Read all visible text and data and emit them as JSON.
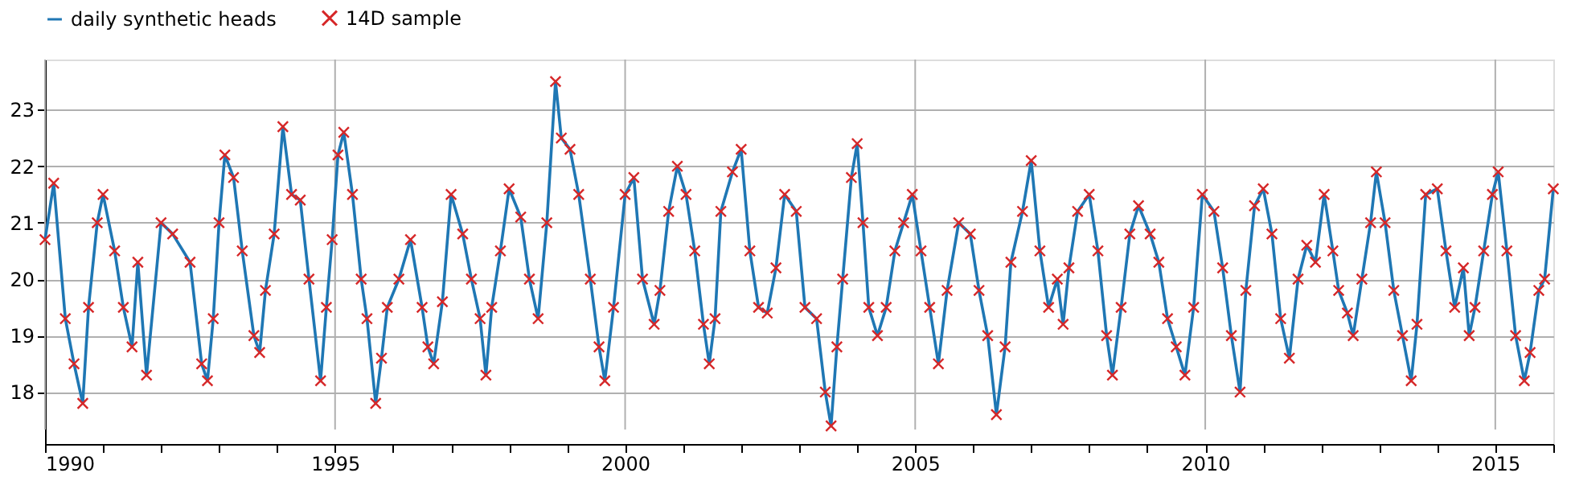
{
  "chart_data": {
    "type": "line",
    "xlim": [
      1990,
      2016
    ],
    "ylim": [
      17.08,
      23.89
    ],
    "xticks": [
      1990,
      {
        "value": 1991,
        "label": null
      },
      {
        "value": 1992,
        "label": null
      },
      {
        "value": 1993,
        "label": null
      },
      {
        "value": 1994,
        "label": null
      },
      1995,
      {
        "value": 1996,
        "label": null
      },
      {
        "value": 1997,
        "label": null
      },
      {
        "value": 1998,
        "label": null
      },
      {
        "value": 1999,
        "label": null
      },
      2000,
      {
        "value": 2001,
        "label": null
      },
      {
        "value": 2002,
        "label": null
      },
      {
        "value": 2003,
        "label": null
      },
      {
        "value": 2004,
        "label": null
      },
      2005,
      {
        "value": 2006,
        "label": null
      },
      {
        "value": 2007,
        "label": null
      },
      {
        "value": 2008,
        "label": null
      },
      {
        "value": 2009,
        "label": null
      },
      2010,
      {
        "value": 2011,
        "label": null
      },
      {
        "value": 2012,
        "label": null
      },
      {
        "value": 2013,
        "label": null
      },
      {
        "value": 2014,
        "label": null
      },
      2015,
      {
        "value": 2016,
        "label": null
      }
    ],
    "yticks": [
      18,
      19,
      20,
      21,
      22,
      23
    ],
    "grid": true,
    "legend": "top left",
    "series": [
      {
        "name": "daily synthetic heads",
        "type": "line",
        "marker": "none",
        "line_style": "solid",
        "color": "#1f77b4",
        "x": [
          1990.0,
          1990.15,
          1990.35,
          1990.5,
          1990.65,
          1990.75,
          1990.9,
          1991.0,
          1991.2,
          1991.35,
          1991.5,
          1991.6,
          1991.75,
          1992.0,
          1992.2,
          1992.5,
          1992.7,
          1992.8,
          1992.9,
          1993.0,
          1993.1,
          1993.25,
          1993.4,
          1993.6,
          1993.7,
          1993.8,
          1993.95,
          1994.1,
          1994.25,
          1994.4,
          1994.55,
          1994.75,
          1994.85,
          1994.95,
          1995.05,
          1995.15,
          1995.3,
          1995.45,
          1995.55,
          1995.7,
          1995.8,
          1995.9,
          1996.1,
          1996.3,
          1996.5,
          1996.6,
          1996.7,
          1996.85,
          1997.0,
          1997.2,
          1997.35,
          1997.5,
          1997.6,
          1997.7,
          1997.85,
          1998.0,
          1998.2,
          1998.35,
          1998.5,
          1998.65,
          1998.8,
          1998.9,
          1999.05,
          1999.2,
          1999.4,
          1999.55,
          1999.65,
          1999.8,
          2000.0,
          2000.15,
          2000.3,
          2000.5,
          2000.6,
          2000.75,
          2000.9,
          2001.05,
          2001.2,
          2001.35,
          2001.45,
          2001.55,
          2001.65,
          2001.85,
          2002.0,
          2002.15,
          2002.3,
          2002.45,
          2002.6,
          2002.75,
          2002.95,
          2003.1,
          2003.3,
          2003.45,
          2003.55,
          2003.65,
          2003.75,
          2003.9,
          2004.0,
          2004.1,
          2004.2,
          2004.35,
          2004.5,
          2004.65,
          2004.8,
          2004.95,
          2005.1,
          2005.25,
          2005.4,
          2005.55,
          2005.75,
          2005.95,
          2006.1,
          2006.25,
          2006.4,
          2006.55,
          2006.65,
          2006.85,
          2007.0,
          2007.15,
          2007.3,
          2007.45,
          2007.55,
          2007.65,
          2007.8,
          2008.0,
          2008.15,
          2008.3,
          2008.4,
          2008.55,
          2008.7,
          2008.85,
          2009.05,
          2009.2,
          2009.35,
          2009.5,
          2009.65,
          2009.8,
          2009.95,
          2010.15,
          2010.3,
          2010.45,
          2010.6,
          2010.7,
          2010.85,
          2011.0,
          2011.15,
          2011.3,
          2011.45,
          2011.6,
          2011.75,
          2011.9,
          2012.05,
          2012.2,
          2012.3,
          2012.45,
          2012.55,
          2012.7,
          2012.85,
          2012.95,
          2013.1,
          2013.25,
          2013.4,
          2013.55,
          2013.65,
          2013.8,
          2014.0,
          2014.15,
          2014.3,
          2014.45,
          2014.55,
          2014.65,
          2014.8,
          2014.95,
          2015.05,
          2015.2,
          2015.35,
          2015.5,
          2015.6,
          2015.75,
          2015.85,
          2016.0
        ],
        "values": [
          20.7,
          21.7,
          19.3,
          18.5,
          17.8,
          19.5,
          21.0,
          21.5,
          20.5,
          19.5,
          18.8,
          20.3,
          18.3,
          21.0,
          20.8,
          20.3,
          18.5,
          18.2,
          19.3,
          21.0,
          22.2,
          21.8,
          20.5,
          19.0,
          18.7,
          19.8,
          20.8,
          22.7,
          21.5,
          21.4,
          20.0,
          18.2,
          19.5,
          20.7,
          22.2,
          22.6,
          21.5,
          20.0,
          19.3,
          17.8,
          18.6,
          19.5,
          20.0,
          20.7,
          19.5,
          18.8,
          18.5,
          19.6,
          21.5,
          20.8,
          20.0,
          19.3,
          18.3,
          19.5,
          20.5,
          21.6,
          21.1,
          20.0,
          19.3,
          21.0,
          23.5,
          22.5,
          22.3,
          21.5,
          20.0,
          18.8,
          18.2,
          19.5,
          21.5,
          21.8,
          20.0,
          19.2,
          19.8,
          21.2,
          22.0,
          21.5,
          20.5,
          19.2,
          18.5,
          19.3,
          21.2,
          21.9,
          22.3,
          20.5,
          19.5,
          19.4,
          20.2,
          21.5,
          21.2,
          19.5,
          19.3,
          18.0,
          17.4,
          18.8,
          20.0,
          21.8,
          22.4,
          21.0,
          19.5,
          19.0,
          19.5,
          20.5,
          21.0,
          21.5,
          20.5,
          19.5,
          18.5,
          19.8,
          21.0,
          20.8,
          19.8,
          19.0,
          17.6,
          18.8,
          20.3,
          21.2,
          22.1,
          20.5,
          19.5,
          20.0,
          19.2,
          20.2,
          21.2,
          21.5,
          20.5,
          19.0,
          18.3,
          19.5,
          20.8,
          21.3,
          20.8,
          20.3,
          19.3,
          18.8,
          18.3,
          19.5,
          21.5,
          21.2,
          20.2,
          19.0,
          18.0,
          19.8,
          21.3,
          21.6,
          20.8,
          19.3,
          18.6,
          20.0,
          20.6,
          20.3,
          21.5,
          20.5,
          19.8,
          19.4,
          19.0,
          20.0,
          21.0,
          21.9,
          21.0,
          19.8,
          19.0,
          18.2,
          19.2,
          21.5,
          21.6,
          20.5,
          19.5,
          20.2,
          19.0,
          19.5,
          20.5,
          21.5,
          21.9,
          20.5,
          19.0,
          18.2,
          18.7,
          19.8,
          20.0,
          21.6
        ]
      },
      {
        "name": "14D sample",
        "type": "scatter",
        "marker": "cross",
        "color": "#d62728",
        "x": [
          1990.0,
          1990.15,
          1990.35,
          1990.5,
          1990.65,
          1990.75,
          1990.9,
          1991.0,
          1991.2,
          1991.35,
          1991.5,
          1991.6,
          1991.75,
          1992.0,
          1992.2,
          1992.5,
          1992.7,
          1992.8,
          1992.9,
          1993.0,
          1993.1,
          1993.25,
          1993.4,
          1993.6,
          1993.7,
          1993.8,
          1993.95,
          1994.1,
          1994.25,
          1994.4,
          1994.55,
          1994.75,
          1994.85,
          1994.95,
          1995.05,
          1995.15,
          1995.3,
          1995.45,
          1995.55,
          1995.7,
          1995.8,
          1995.9,
          1996.1,
          1996.3,
          1996.5,
          1996.6,
          1996.7,
          1996.85,
          1997.0,
          1997.2,
          1997.35,
          1997.5,
          1997.6,
          1997.7,
          1997.85,
          1998.0,
          1998.2,
          1998.35,
          1998.5,
          1998.65,
          1998.8,
          1998.9,
          1999.05,
          1999.2,
          1999.4,
          1999.55,
          1999.65,
          1999.8,
          2000.0,
          2000.15,
          2000.3,
          2000.5,
          2000.6,
          2000.75,
          2000.9,
          2001.05,
          2001.2,
          2001.35,
          2001.45,
          2001.55,
          2001.65,
          2001.85,
          2002.0,
          2002.15,
          2002.3,
          2002.45,
          2002.6,
          2002.75,
          2002.95,
          2003.1,
          2003.3,
          2003.45,
          2003.55,
          2003.65,
          2003.75,
          2003.9,
          2004.0,
          2004.1,
          2004.2,
          2004.35,
          2004.5,
          2004.65,
          2004.8,
          2004.95,
          2005.1,
          2005.25,
          2005.4,
          2005.55,
          2005.75,
          2005.95,
          2006.1,
          2006.25,
          2006.4,
          2006.55,
          2006.65,
          2006.85,
          2007.0,
          2007.15,
          2007.3,
          2007.45,
          2007.55,
          2007.65,
          2007.8,
          2008.0,
          2008.15,
          2008.3,
          2008.4,
          2008.55,
          2008.7,
          2008.85,
          2009.05,
          2009.2,
          2009.35,
          2009.5,
          2009.65,
          2009.8,
          2009.95,
          2010.15,
          2010.3,
          2010.45,
          2010.6,
          2010.7,
          2010.85,
          2011.0,
          2011.15,
          2011.3,
          2011.45,
          2011.6,
          2011.75,
          2011.9,
          2012.05,
          2012.2,
          2012.3,
          2012.45,
          2012.55,
          2012.7,
          2012.85,
          2012.95,
          2013.1,
          2013.25,
          2013.4,
          2013.55,
          2013.65,
          2013.8,
          2014.0,
          2014.15,
          2014.3,
          2014.45,
          2014.55,
          2014.65,
          2014.8,
          2014.95,
          2015.05,
          2015.2,
          2015.35,
          2015.5,
          2015.6,
          2015.75,
          2015.85,
          2016.0
        ],
        "values": [
          20.7,
          21.7,
          19.3,
          18.5,
          17.8,
          19.5,
          21.0,
          21.5,
          20.5,
          19.5,
          18.8,
          20.3,
          18.3,
          21.0,
          20.8,
          20.3,
          18.5,
          18.2,
          19.3,
          21.0,
          22.2,
          21.8,
          20.5,
          19.0,
          18.7,
          19.8,
          20.8,
          22.7,
          21.5,
          21.4,
          20.0,
          18.2,
          19.5,
          20.7,
          22.2,
          22.6,
          21.5,
          20.0,
          19.3,
          17.8,
          18.6,
          19.5,
          20.0,
          20.7,
          19.5,
          18.8,
          18.5,
          19.6,
          21.5,
          20.8,
          20.0,
          19.3,
          18.3,
          19.5,
          20.5,
          21.6,
          21.1,
          20.0,
          19.3,
          21.0,
          23.5,
          22.5,
          22.3,
          21.5,
          20.0,
          18.8,
          18.2,
          19.5,
          21.5,
          21.8,
          20.0,
          19.2,
          19.8,
          21.2,
          22.0,
          21.5,
          20.5,
          19.2,
          18.5,
          19.3,
          21.2,
          21.9,
          22.3,
          20.5,
          19.5,
          19.4,
          20.2,
          21.5,
          21.2,
          19.5,
          19.3,
          18.0,
          17.4,
          18.8,
          20.0,
          21.8,
          22.4,
          21.0,
          19.5,
          19.0,
          19.5,
          20.5,
          21.0,
          21.5,
          20.5,
          19.5,
          18.5,
          19.8,
          21.0,
          20.8,
          19.8,
          19.0,
          17.6,
          18.8,
          20.3,
          21.2,
          22.1,
          20.5,
          19.5,
          20.0,
          19.2,
          20.2,
          21.2,
          21.5,
          20.5,
          19.0,
          18.3,
          19.5,
          20.8,
          21.3,
          20.8,
          20.3,
          19.3,
          18.8,
          18.3,
          19.5,
          21.5,
          21.2,
          20.2,
          19.0,
          18.0,
          19.8,
          21.3,
          21.6,
          20.8,
          19.3,
          18.6,
          20.0,
          20.6,
          20.3,
          21.5,
          20.5,
          19.8,
          19.4,
          19.0,
          20.0,
          21.0,
          21.9,
          21.0,
          19.8,
          19.0,
          18.2,
          19.2,
          21.5,
          21.6,
          20.5,
          19.5,
          20.2,
          19.0,
          19.5,
          20.5,
          21.5,
          21.9,
          20.5,
          19.0,
          18.2,
          18.7,
          19.8,
          20.0,
          21.6
        ]
      }
    ]
  }
}
